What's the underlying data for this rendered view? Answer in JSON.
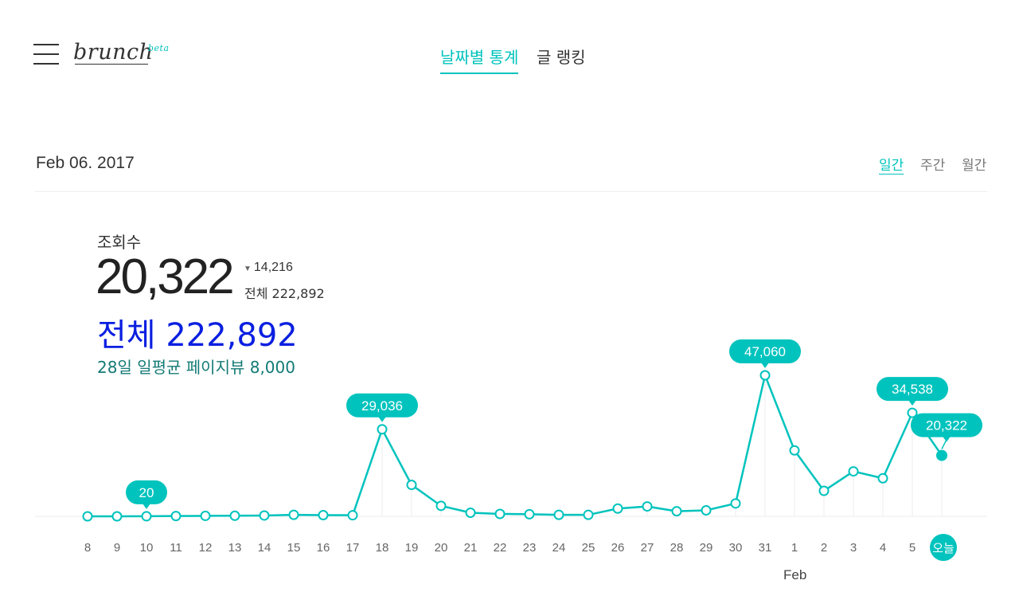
{
  "header": {
    "logo_text": "brunch",
    "logo_badge": "beta",
    "tabs": [
      {
        "label": "날짜별 통계",
        "active": true
      },
      {
        "label": "글 랭킹",
        "active": false
      }
    ]
  },
  "toolbar": {
    "date": "Feb 06. 2017",
    "periods": [
      "일간",
      "주간",
      "월간"
    ],
    "active_period": "일간"
  },
  "summary": {
    "label": "조회수",
    "value": "20,322",
    "change": "14,216",
    "total_small": "전체 222,892",
    "total_big": "전체 222,892",
    "average": "28일 일평균 페이지뷰 8,000"
  },
  "chart_data": {
    "type": "line",
    "title": "",
    "x": [
      "8",
      "9",
      "10",
      "11",
      "12",
      "13",
      "14",
      "15",
      "16",
      "17",
      "18",
      "19",
      "20",
      "21",
      "22",
      "23",
      "24",
      "25",
      "26",
      "27",
      "28",
      "29",
      "30",
      "31",
      "1",
      "2",
      "3",
      "4",
      "5",
      "오늘"
    ],
    "values": [
      0,
      0,
      20,
      100,
      150,
      200,
      280,
      500,
      400,
      350,
      29036,
      10500,
      3500,
      1200,
      800,
      700,
      500,
      500,
      2600,
      3300,
      1700,
      2000,
      4300,
      47060,
      22000,
      8500,
      15000,
      12700,
      34538,
      20322
    ],
    "labeled_points": [
      {
        "x": "10",
        "label": "20"
      },
      {
        "x": "18",
        "label": "29,036"
      },
      {
        "x": "31",
        "label": "47,060"
      },
      {
        "x": "5",
        "label": "34,538"
      },
      {
        "x": "오늘",
        "label": "20,322"
      }
    ],
    "month_label": "Feb",
    "month_label_at": "1",
    "highlight_x": "오늘",
    "ylim": [
      0,
      47060
    ],
    "line_color": "#00c3bd"
  }
}
